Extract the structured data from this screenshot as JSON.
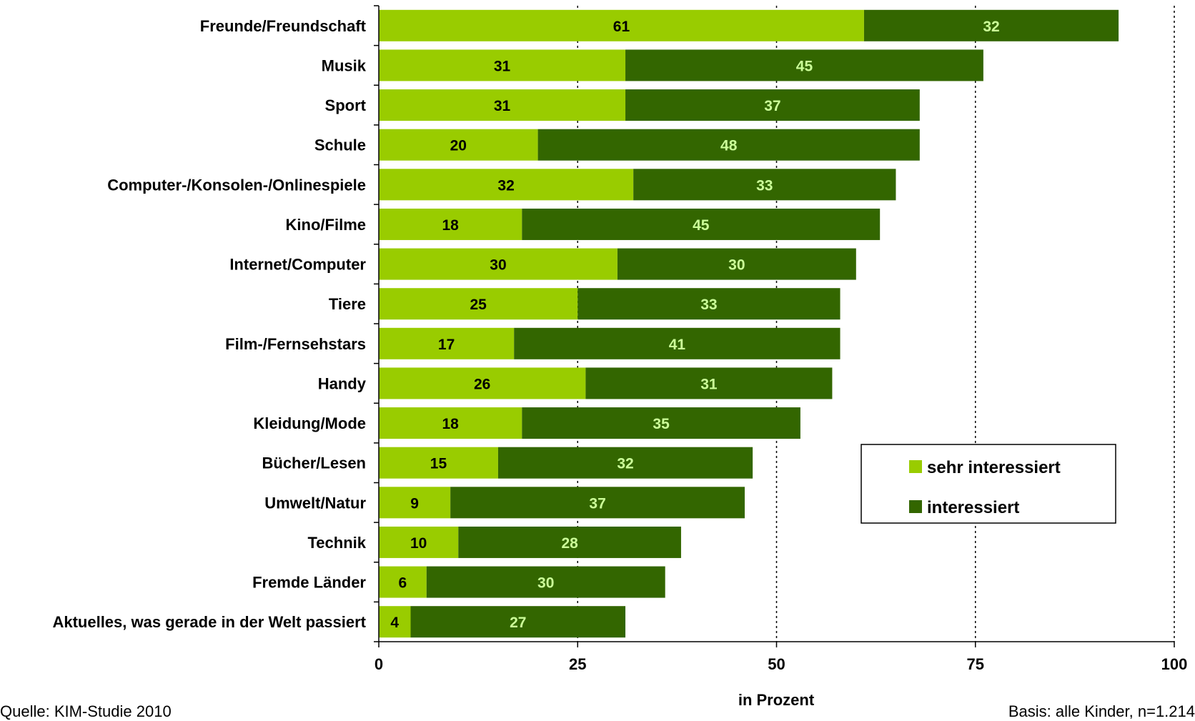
{
  "chart_data": {
    "type": "bar",
    "orientation": "horizontal",
    "stacked": true,
    "categories": [
      "Freunde/Freundschaft",
      "Musik",
      "Sport",
      "Schule",
      "Computer-/Konsolen-/Onlinespiele",
      "Kino/Filme",
      "Internet/Computer",
      "Tiere",
      "Film-/Fernsehstars",
      "Handy",
      "Kleidung/Mode",
      "Bücher/Lesen",
      "Umwelt/Natur",
      "Technik",
      "Fremde Länder",
      "Aktuelles, was gerade in der Welt passiert"
    ],
    "series": [
      {
        "name": "sehr interessiert",
        "color": "#99cc00",
        "label_color": "#000000",
        "values": [
          61,
          31,
          31,
          20,
          32,
          18,
          30,
          25,
          17,
          26,
          18,
          15,
          9,
          10,
          6,
          4
        ]
      },
      {
        "name": "interessiert",
        "color": "#336600",
        "label_color": "#ccff99",
        "values": [
          32,
          45,
          37,
          48,
          33,
          45,
          30,
          33,
          41,
          31,
          35,
          32,
          37,
          28,
          30,
          27
        ]
      }
    ],
    "xlim": [
      0,
      100
    ],
    "xticks": [
      "0",
      "25",
      "50",
      "75",
      "100"
    ],
    "xlabel": "in Prozent",
    "ylabel": "",
    "grid": "vertical dotted",
    "legend_position": "bottom-right"
  },
  "footer": {
    "source": "Quelle: KIM-Studie 2010",
    "basis": "Basis: alle Kinder, n=1.214"
  }
}
